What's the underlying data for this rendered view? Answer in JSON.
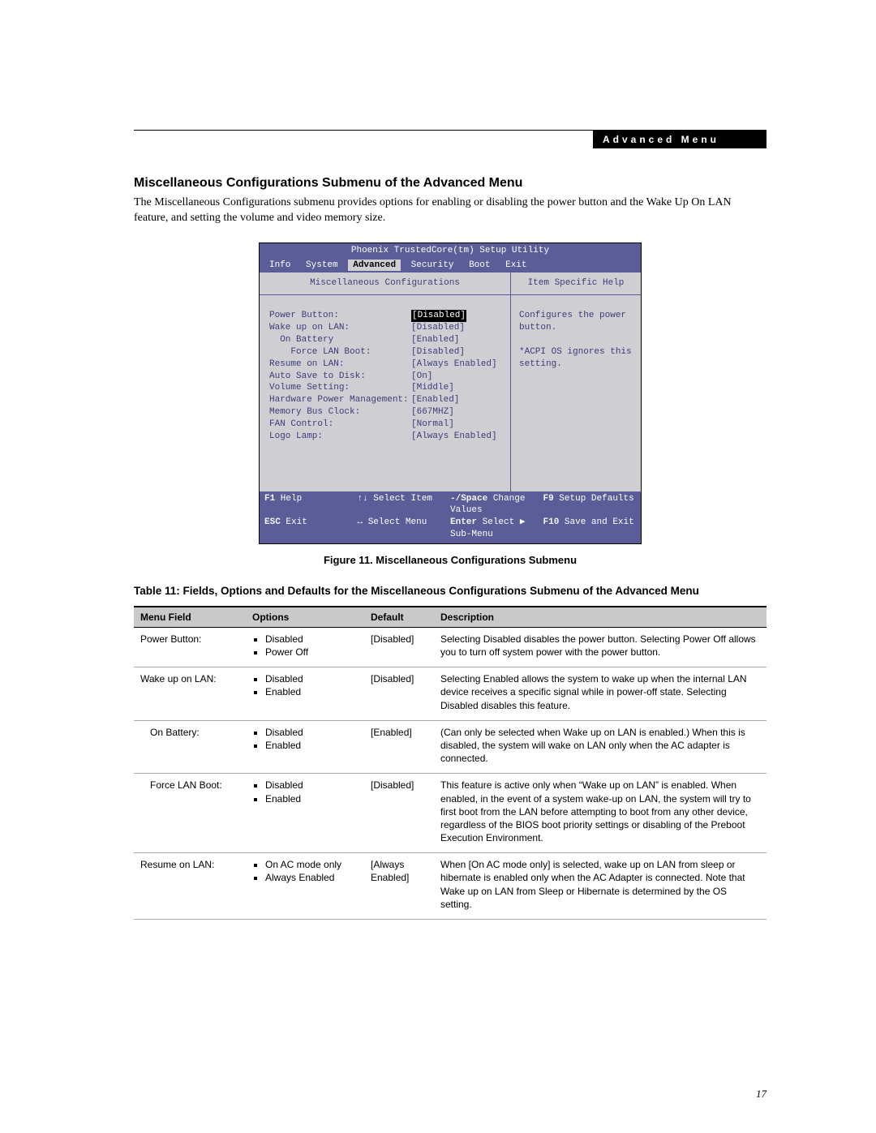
{
  "header_band": "Advanced Menu",
  "section_title": "Miscellaneous Configurations Submenu of the Advanced Menu",
  "intro": "The Miscellaneous Configurations submenu provides options for enabling or disabling the power button and the Wake Up On LAN feature, and setting the volume and video memory size.",
  "bios": {
    "title": "Phoenix TrustedCore(tm) Setup Utility",
    "menu": {
      "items": [
        "Info",
        "System",
        "Advanced",
        "Security",
        "Boot",
        "Exit"
      ],
      "selected_index": 2
    },
    "left_title": "Miscellaneous Configurations",
    "right_title": "Item Specific Help",
    "rows": [
      {
        "label": "Power Button:",
        "indent": 0,
        "value": "[Disabled]",
        "selected": true
      },
      {
        "label": "Wake up on LAN:",
        "indent": 0,
        "value": "[Disabled]"
      },
      {
        "label": "On Battery",
        "indent": 1,
        "value": "[Enabled]"
      },
      {
        "label": "Force LAN Boot:",
        "indent": 2,
        "value": "[Disabled]"
      },
      {
        "label": "Resume on LAN:",
        "indent": 0,
        "value": "[Always Enabled]"
      },
      {
        "label": "Auto Save to Disk:",
        "indent": 0,
        "value": "[On]"
      },
      {
        "label": "Volume Setting:",
        "indent": 0,
        "value": "[Middle]"
      },
      {
        "label": "Hardware Power Management:",
        "indent": 0,
        "value": "[Enabled]"
      },
      {
        "label": "Memory Bus Clock:",
        "indent": 0,
        "value": "[667MHZ]"
      },
      {
        "label": "FAN Control:",
        "indent": 0,
        "value": "[Normal]"
      },
      {
        "label": "Logo Lamp:",
        "indent": 0,
        "value": "[Always Enabled]"
      }
    ],
    "help_text": "Configures the power button.\n\n*ACPI OS ignores this setting.",
    "footer": {
      "r1": {
        "k1": "F1",
        "l1": "Help",
        "k2": "↑↓",
        "l2": "Select Item",
        "k3": "-/Space",
        "l3": "Change Values",
        "k4": "F9",
        "l4": "Setup Defaults"
      },
      "r2": {
        "k1": "ESC",
        "l1": "Exit",
        "k2": "↔",
        "l2": "Select Menu",
        "k3": "Enter",
        "l3": "Select ▶ Sub-Menu",
        "k4": "F10",
        "l4": "Save and Exit"
      }
    }
  },
  "fig_caption": "Figure 11.  Miscellaneous Configurations Submenu",
  "table_caption": "Table 11: Fields, Options and Defaults for the Miscellaneous Configurations Submenu of the Advanced Menu",
  "table": {
    "columns": [
      "Menu Field",
      "Options",
      "Default",
      "Description"
    ],
    "rows": [
      {
        "field": "Power Button:",
        "indent": false,
        "options": [
          "Disabled",
          "Power Off"
        ],
        "default": "[Disabled]",
        "desc": "Selecting Disabled disables the power button. Selecting Power Off allows you to turn off system power with the power button."
      },
      {
        "field": "Wake up on LAN:",
        "indent": false,
        "options": [
          "Disabled",
          "Enabled"
        ],
        "default": "[Disabled]",
        "desc": "Selecting Enabled allows the system to wake up when the internal LAN device receives a specific signal while in power-off state. Selecting Disabled disables this feature."
      },
      {
        "field": "On Battery:",
        "indent": true,
        "options": [
          "Disabled",
          "Enabled"
        ],
        "default": "[Enabled]",
        "desc": "(Can only be selected when Wake up on LAN is enabled.) When this is disabled, the system will wake on LAN only when the AC adapter is connected."
      },
      {
        "field": "Force LAN Boot:",
        "indent": true,
        "options": [
          "Disabled",
          "Enabled"
        ],
        "default": "[Disabled]",
        "desc": "This feature is active only when “Wake up on LAN” is enabled. When enabled, in the event of a system wake-up on LAN, the system will try to first boot from the LAN before attempting to boot from any other device, regardless of the BIOS boot priority settings or disabling of the Preboot Execution Environment."
      },
      {
        "field": "Resume on LAN:",
        "indent": false,
        "options": [
          "On AC mode only",
          "Always Enabled"
        ],
        "default": "[Always Enabled]",
        "desc": "When [On AC mode only] is selected, wake up on LAN from sleep or hibernate is enabled only when the AC Adapter is connected. Note that Wake up on LAN from Sleep or Hibernate is determined by the OS setting."
      }
    ]
  },
  "page_number": "17"
}
